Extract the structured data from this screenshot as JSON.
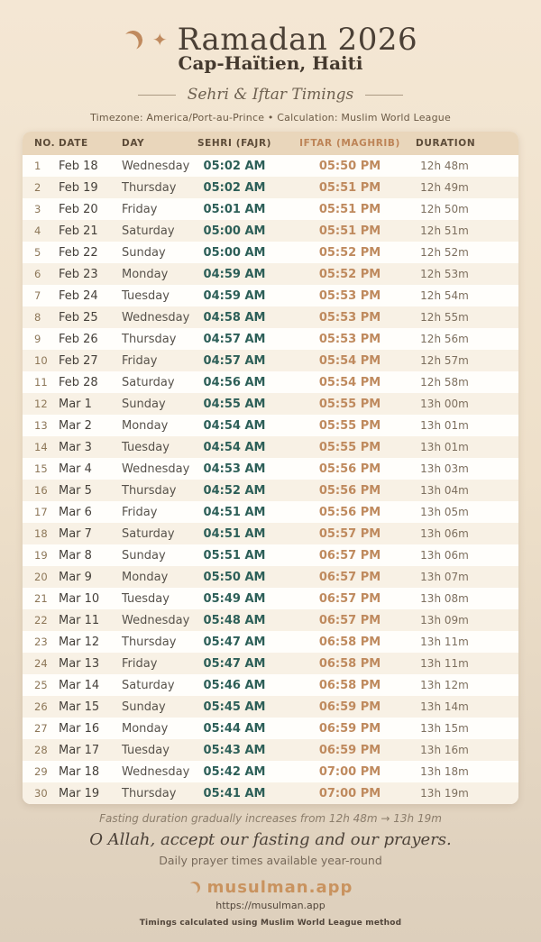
{
  "header": {
    "title": "Ramadan 2026",
    "location": "Cap-Haïtien, Haiti",
    "subtitle": "Sehri & Iftar Timings",
    "meta": "Timezone: America/Port-au-Prince • Calculation: Muslim World League",
    "diamond": "◇",
    "star_icon": "✦"
  },
  "table": {
    "columns": [
      "NO.",
      "DATE",
      "DAY",
      "SEHRI (FAJR)",
      "IFTAR (MAGHRIB)",
      "DURATION"
    ],
    "rows": [
      {
        "no": "1",
        "date": "Feb 18",
        "day": "Wednesday",
        "sehri": "05:02 AM",
        "iftar": "05:50 PM",
        "duration": "12h 48m"
      },
      {
        "no": "2",
        "date": "Feb 19",
        "day": "Thursday",
        "sehri": "05:02 AM",
        "iftar": "05:51 PM",
        "duration": "12h 49m"
      },
      {
        "no": "3",
        "date": "Feb 20",
        "day": "Friday",
        "sehri": "05:01 AM",
        "iftar": "05:51 PM",
        "duration": "12h 50m"
      },
      {
        "no": "4",
        "date": "Feb 21",
        "day": "Saturday",
        "sehri": "05:00 AM",
        "iftar": "05:51 PM",
        "duration": "12h 51m"
      },
      {
        "no": "5",
        "date": "Feb 22",
        "day": "Sunday",
        "sehri": "05:00 AM",
        "iftar": "05:52 PM",
        "duration": "12h 52m"
      },
      {
        "no": "6",
        "date": "Feb 23",
        "day": "Monday",
        "sehri": "04:59 AM",
        "iftar": "05:52 PM",
        "duration": "12h 53m"
      },
      {
        "no": "7",
        "date": "Feb 24",
        "day": "Tuesday",
        "sehri": "04:59 AM",
        "iftar": "05:53 PM",
        "duration": "12h 54m"
      },
      {
        "no": "8",
        "date": "Feb 25",
        "day": "Wednesday",
        "sehri": "04:58 AM",
        "iftar": "05:53 PM",
        "duration": "12h 55m"
      },
      {
        "no": "9",
        "date": "Feb 26",
        "day": "Thursday",
        "sehri": "04:57 AM",
        "iftar": "05:53 PM",
        "duration": "12h 56m"
      },
      {
        "no": "10",
        "date": "Feb 27",
        "day": "Friday",
        "sehri": "04:57 AM",
        "iftar": "05:54 PM",
        "duration": "12h 57m"
      },
      {
        "no": "11",
        "date": "Feb 28",
        "day": "Saturday",
        "sehri": "04:56 AM",
        "iftar": "05:54 PM",
        "duration": "12h 58m"
      },
      {
        "no": "12",
        "date": "Mar 1",
        "day": "Sunday",
        "sehri": "04:55 AM",
        "iftar": "05:55 PM",
        "duration": "13h 00m"
      },
      {
        "no": "13",
        "date": "Mar 2",
        "day": "Monday",
        "sehri": "04:54 AM",
        "iftar": "05:55 PM",
        "duration": "13h 01m"
      },
      {
        "no": "14",
        "date": "Mar 3",
        "day": "Tuesday",
        "sehri": "04:54 AM",
        "iftar": "05:55 PM",
        "duration": "13h 01m"
      },
      {
        "no": "15",
        "date": "Mar 4",
        "day": "Wednesday",
        "sehri": "04:53 AM",
        "iftar": "05:56 PM",
        "duration": "13h 03m"
      },
      {
        "no": "16",
        "date": "Mar 5",
        "day": "Thursday",
        "sehri": "04:52 AM",
        "iftar": "05:56 PM",
        "duration": "13h 04m"
      },
      {
        "no": "17",
        "date": "Mar 6",
        "day": "Friday",
        "sehri": "04:51 AM",
        "iftar": "05:56 PM",
        "duration": "13h 05m"
      },
      {
        "no": "18",
        "date": "Mar 7",
        "day": "Saturday",
        "sehri": "04:51 AM",
        "iftar": "05:57 PM",
        "duration": "13h 06m"
      },
      {
        "no": "19",
        "date": "Mar 8",
        "day": "Sunday",
        "sehri": "05:51 AM",
        "iftar": "06:57 PM",
        "duration": "13h 06m"
      },
      {
        "no": "20",
        "date": "Mar 9",
        "day": "Monday",
        "sehri": "05:50 AM",
        "iftar": "06:57 PM",
        "duration": "13h 07m"
      },
      {
        "no": "21",
        "date": "Mar 10",
        "day": "Tuesday",
        "sehri": "05:49 AM",
        "iftar": "06:57 PM",
        "duration": "13h 08m"
      },
      {
        "no": "22",
        "date": "Mar 11",
        "day": "Wednesday",
        "sehri": "05:48 AM",
        "iftar": "06:57 PM",
        "duration": "13h 09m"
      },
      {
        "no": "23",
        "date": "Mar 12",
        "day": "Thursday",
        "sehri": "05:47 AM",
        "iftar": "06:58 PM",
        "duration": "13h 11m"
      },
      {
        "no": "24",
        "date": "Mar 13",
        "day": "Friday",
        "sehri": "05:47 AM",
        "iftar": "06:58 PM",
        "duration": "13h 11m"
      },
      {
        "no": "25",
        "date": "Mar 14",
        "day": "Saturday",
        "sehri": "05:46 AM",
        "iftar": "06:58 PM",
        "duration": "13h 12m"
      },
      {
        "no": "26",
        "date": "Mar 15",
        "day": "Sunday",
        "sehri": "05:45 AM",
        "iftar": "06:59 PM",
        "duration": "13h 14m"
      },
      {
        "no": "27",
        "date": "Mar 16",
        "day": "Monday",
        "sehri": "05:44 AM",
        "iftar": "06:59 PM",
        "duration": "13h 15m"
      },
      {
        "no": "28",
        "date": "Mar 17",
        "day": "Tuesday",
        "sehri": "05:43 AM",
        "iftar": "06:59 PM",
        "duration": "13h 16m"
      },
      {
        "no": "29",
        "date": "Mar 18",
        "day": "Wednesday",
        "sehri": "05:42 AM",
        "iftar": "07:00 PM",
        "duration": "13h 18m"
      },
      {
        "no": "30",
        "date": "Mar 19",
        "day": "Thursday",
        "sehri": "05:41 AM",
        "iftar": "07:00 PM",
        "duration": "13h 19m"
      }
    ]
  },
  "footer": {
    "fasting_note": "Fasting duration gradually increases from 12h 48m → 13h 19m",
    "dua": "O Allah, accept our fasting and our prayers.",
    "availability": "Daily prayer times available year-round",
    "brand": "musulman.app",
    "url": "https://musulman.app",
    "method": "Timings calculated using Muslim World League method"
  },
  "colors": {
    "background_top": "#f4e7d4",
    "background_bottom": "#ddcfbc",
    "accent_copper": "#c08a5e",
    "sehri_teal": "#2d5f58",
    "table_header_bg": "#e9d6bb",
    "row_alt_bg": "#f8f1e5",
    "title_brown": "#4b4036"
  }
}
